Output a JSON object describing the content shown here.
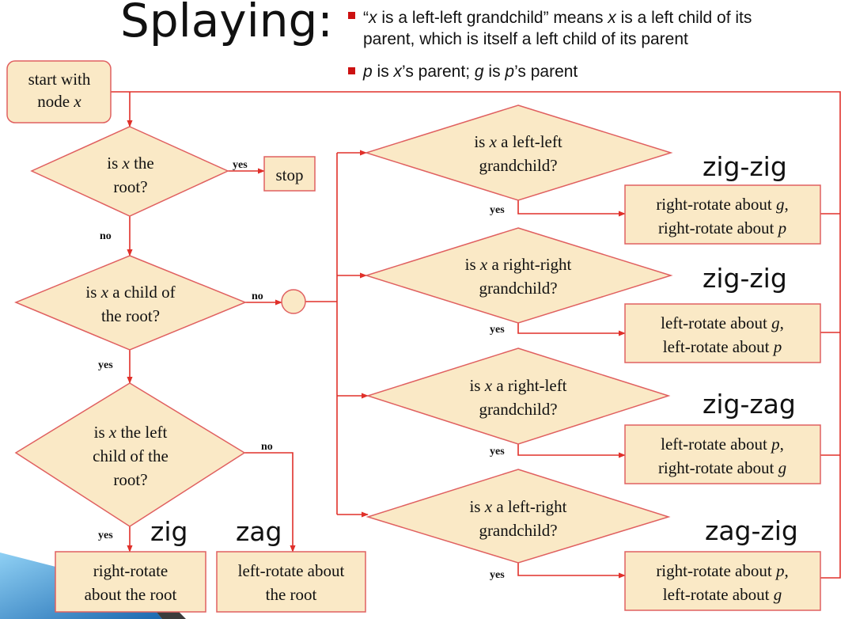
{
  "title": "Splaying:",
  "bullets": [
    {
      "marker_color": "#cc1111",
      "lines": [
        [
          {
            "t": "“"
          },
          {
            "t": "x",
            "i": true
          },
          {
            "t": " is a left-left grandchild” means "
          },
          {
            "t": "x",
            "i": true
          },
          {
            "t": " is a left child of its"
          }
        ],
        [
          {
            "t": "parent, which is itself a left child of its parent"
          }
        ]
      ]
    },
    {
      "marker_color": "#cc1111",
      "lines": [
        [
          {
            "t": "p",
            "i": true
          },
          {
            "t": " is "
          },
          {
            "t": "x",
            "i": true
          },
          {
            "t": "’s parent; "
          },
          {
            "t": "g",
            "i": true
          },
          {
            "t": " is "
          },
          {
            "t": "p",
            "i": true
          },
          {
            "t": "’s parent"
          }
        ]
      ]
    }
  ],
  "nodes": {
    "start": {
      "lines": [
        [
          {
            "t": "start with"
          }
        ],
        [
          {
            "t": "node "
          },
          {
            "t": "x",
            "i": true
          }
        ]
      ]
    },
    "is_root": {
      "lines": [
        [
          {
            "t": "is "
          },
          {
            "t": "x",
            "i": true
          },
          {
            "t": " the"
          }
        ],
        [
          {
            "t": "root?"
          }
        ]
      ]
    },
    "stop": {
      "lines": [
        [
          {
            "t": "stop"
          }
        ]
      ]
    },
    "child_of_root": {
      "lines": [
        [
          {
            "t": "is "
          },
          {
            "t": "x",
            "i": true
          },
          {
            "t": " a child of"
          }
        ],
        [
          {
            "t": "the root?"
          }
        ]
      ]
    },
    "left_child": {
      "lines": [
        [
          {
            "t": "is "
          },
          {
            "t": "x",
            "i": true
          },
          {
            "t": " the left"
          }
        ],
        [
          {
            "t": "child of the"
          }
        ],
        [
          {
            "t": "root?"
          }
        ]
      ]
    },
    "right_rotate_root": {
      "lines": [
        [
          {
            "t": "right-rotate"
          }
        ],
        [
          {
            "t": "about the root"
          }
        ]
      ]
    },
    "left_rotate_root": {
      "lines": [
        [
          {
            "t": "left-rotate about"
          }
        ],
        [
          {
            "t": "the root"
          }
        ]
      ]
    },
    "left_left": {
      "lines": [
        [
          {
            "t": "is "
          },
          {
            "t": "x",
            "i": true
          },
          {
            "t": " a left-left"
          }
        ],
        [
          {
            "t": "grandchild?"
          }
        ]
      ]
    },
    "right_right": {
      "lines": [
        [
          {
            "t": "is "
          },
          {
            "t": "x",
            "i": true
          },
          {
            "t": " a right-right"
          }
        ],
        [
          {
            "t": "grandchild?"
          }
        ]
      ]
    },
    "right_left": {
      "lines": [
        [
          {
            "t": "is "
          },
          {
            "t": "x",
            "i": true
          },
          {
            "t": " a right-left"
          }
        ],
        [
          {
            "t": "grandchild?"
          }
        ]
      ]
    },
    "left_right": {
      "lines": [
        [
          {
            "t": "is "
          },
          {
            "t": "x",
            "i": true
          },
          {
            "t": " a left-right"
          }
        ],
        [
          {
            "t": "grandchild?"
          }
        ]
      ]
    },
    "act_zigzig_1": {
      "lines": [
        [
          {
            "t": "right-rotate about "
          },
          {
            "t": "g",
            "i": true
          },
          {
            "t": ","
          }
        ],
        [
          {
            "t": "right-rotate about "
          },
          {
            "t": "p",
            "i": true
          }
        ]
      ]
    },
    "act_zigzig_2": {
      "lines": [
        [
          {
            "t": "left-rotate about "
          },
          {
            "t": "g",
            "i": true
          },
          {
            "t": ","
          }
        ],
        [
          {
            "t": "left-rotate about "
          },
          {
            "t": "p",
            "i": true
          }
        ]
      ]
    },
    "act_zigzag": {
      "lines": [
        [
          {
            "t": "left-rotate about "
          },
          {
            "t": "p",
            "i": true
          },
          {
            "t": ","
          }
        ],
        [
          {
            "t": "right-rotate about "
          },
          {
            "t": "g",
            "i": true
          }
        ]
      ]
    },
    "act_zagzig": {
      "lines": [
        [
          {
            "t": "right-rotate about "
          },
          {
            "t": "p",
            "i": true
          },
          {
            "t": ","
          }
        ],
        [
          {
            "t": "left-rotate about "
          },
          {
            "t": "g",
            "i": true
          }
        ]
      ]
    }
  },
  "case_labels": {
    "zig": "zig",
    "zag": "zag",
    "zigzig_1": "zig-zig",
    "zigzig_2": "zig-zig",
    "zigzag": "zig-zag",
    "zagzig": "zag-zig"
  },
  "edge_labels": {
    "root_yes": "yes",
    "root_no": "no",
    "child_no": "no",
    "child_yes": "yes",
    "left_no": "no",
    "left_yes": "yes",
    "ll_yes": "yes",
    "rr_yes": "yes",
    "rl_yes": "yes",
    "lr_yes": "yes"
  },
  "colors": {
    "node_fill": "#fae9c6",
    "node_border": "#e06060",
    "connector": "#e0302a",
    "accent_shape": "#2a7fc4"
  }
}
